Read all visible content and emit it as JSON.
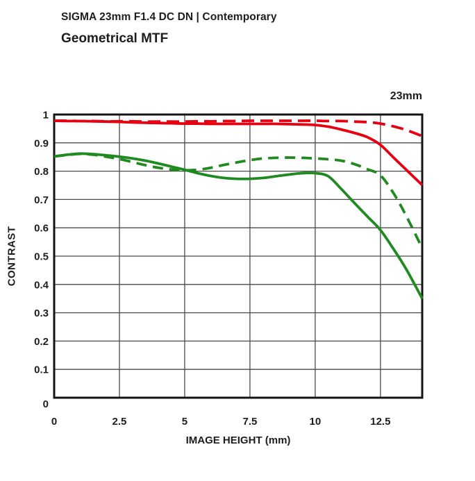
{
  "header": {
    "lens_title": "SIGMA 23mm F1.4 DC DN | Contemporary",
    "chart_title": "Geometrical MTF",
    "focal_length": "23mm"
  },
  "colors": {
    "red": "#e60012",
    "green": "#1f8a1f",
    "grid": "#4a4a4a",
    "border": "#141414",
    "text": "#1d1d1b",
    "background": "#ffffff"
  },
  "chart_data": {
    "type": "line",
    "title": "Geometrical MTF",
    "annotation": "23mm",
    "xlabel": "IMAGE HEIGHT (mm)",
    "ylabel": "CONTRAST",
    "xlim": [
      0,
      14.1
    ],
    "ylim": [
      0,
      1
    ],
    "grid": true,
    "legend": "none",
    "x_tick_values": [
      0,
      2.5,
      5,
      7.5,
      10,
      12.5
    ],
    "x_tick_labels": [
      "0",
      "2.5",
      "5",
      "7.5",
      "10",
      "12.5"
    ],
    "y_tick_values": [
      1,
      0.9,
      0.8,
      0.7,
      0.6,
      0.5,
      0.4,
      0.3,
      0.2,
      0.1,
      0
    ],
    "y_tick_labels": [
      "1",
      "0.9",
      "0.8",
      "0.7",
      "0.6",
      "0.5",
      "0.4",
      "0.3",
      "0.2",
      "0.1",
      "0"
    ],
    "x": [
      0,
      0.5,
      1,
      1.5,
      2,
      2.5,
      3,
      3.5,
      4,
      4.5,
      5,
      5.5,
      6,
      6.5,
      7,
      7.5,
      8,
      8.5,
      9,
      9.5,
      10,
      10.5,
      11,
      11.5,
      12,
      12.5,
      13,
      13.5,
      14.1
    ],
    "series": [
      {
        "name": "red-solid",
        "color_key": "red",
        "style": "solid",
        "values": [
          0.978,
          0.977,
          0.977,
          0.976,
          0.975,
          0.974,
          0.972,
          0.971,
          0.97,
          0.969,
          0.968,
          0.968,
          0.967,
          0.967,
          0.967,
          0.967,
          0.967,
          0.967,
          0.966,
          0.965,
          0.963,
          0.957,
          0.947,
          0.935,
          0.92,
          0.893,
          0.848,
          0.804,
          0.751
        ]
      },
      {
        "name": "red-dashed",
        "color_key": "red",
        "style": "dashed",
        "values": [
          0.978,
          0.978,
          0.977,
          0.977,
          0.976,
          0.976,
          0.976,
          0.975,
          0.975,
          0.975,
          0.975,
          0.976,
          0.976,
          0.977,
          0.977,
          0.978,
          0.978,
          0.978,
          0.978,
          0.978,
          0.978,
          0.977,
          0.977,
          0.975,
          0.973,
          0.968,
          0.958,
          0.945,
          0.924
        ]
      },
      {
        "name": "green-solid",
        "color_key": "green",
        "style": "solid",
        "values": [
          0.852,
          0.858,
          0.862,
          0.86,
          0.856,
          0.851,
          0.845,
          0.837,
          0.827,
          0.816,
          0.805,
          0.793,
          0.783,
          0.776,
          0.773,
          0.773,
          0.776,
          0.782,
          0.788,
          0.793,
          0.793,
          0.782,
          0.737,
          0.688,
          0.64,
          0.592,
          0.525,
          0.452,
          0.35
        ]
      },
      {
        "name": "green-dashed",
        "color_key": "green",
        "style": "dashed",
        "values": [
          0.852,
          0.857,
          0.861,
          0.858,
          0.851,
          0.843,
          0.832,
          0.821,
          0.812,
          0.806,
          0.803,
          0.805,
          0.812,
          0.822,
          0.831,
          0.839,
          0.845,
          0.847,
          0.848,
          0.847,
          0.845,
          0.842,
          0.837,
          0.825,
          0.807,
          0.785,
          0.722,
          0.64,
          0.528
        ]
      }
    ]
  }
}
